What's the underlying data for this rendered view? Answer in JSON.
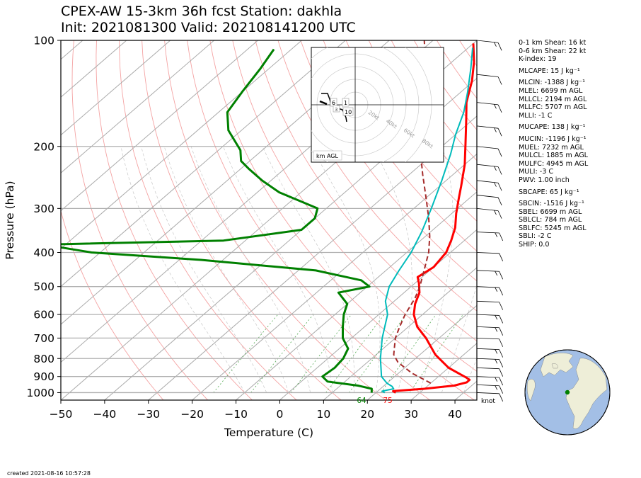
{
  "header": {
    "line1": "CPEX-AW 15-3km  36h fcst  Station: dakhla",
    "line2": "Init: 2021081300  Valid: 202108141200 UTC"
  },
  "chart_data": {
    "type": "line",
    "subtype": "skew-t log-p",
    "xlabel": "Temperature (C)",
    "ylabel": "Pressure (hPa)",
    "xlim": [
      -50,
      45
    ],
    "ylim_pressure": [
      1050,
      100
    ],
    "x_ticks": [
      "−50",
      "−40",
      "−30",
      "−20",
      "−10",
      "0",
      "10",
      "20",
      "30",
      "40"
    ],
    "y_ticks": [
      "100",
      "200",
      "300",
      "400",
      "500",
      "600",
      "700",
      "800",
      "900",
      "1000"
    ],
    "grid": true,
    "series": [
      {
        "role": "temperature",
        "color": "#ff0000",
        "points": [
          [
            24.5,
            1000
          ],
          [
            23.5,
            990
          ],
          [
            30,
            975
          ],
          [
            36,
            955
          ],
          [
            38,
            935
          ],
          [
            38,
            920
          ],
          [
            36.5,
            905
          ],
          [
            30,
            850
          ],
          [
            23.5,
            780
          ],
          [
            17,
            700
          ],
          [
            12,
            650
          ],
          [
            8,
            600
          ],
          [
            5.5,
            560
          ],
          [
            3.5,
            520
          ],
          [
            1,
            490
          ],
          [
            -1,
            470
          ],
          [
            0,
            440
          ],
          [
            -1,
            400
          ],
          [
            -3,
            370
          ],
          [
            -5.5,
            340
          ],
          [
            -9,
            310
          ],
          [
            -12.5,
            280
          ],
          [
            -15,
            260
          ],
          [
            -20,
            225
          ],
          [
            -25,
            198
          ],
          [
            -31,
            170
          ],
          [
            -36,
            150
          ],
          [
            -40.5,
            130
          ],
          [
            -45,
            115
          ],
          [
            -50,
            102
          ]
        ]
      },
      {
        "role": "dewpoint",
        "color": "#00bbbb",
        "points": [
          [
            22,
            1000
          ],
          [
            21,
            990
          ],
          [
            23,
            975
          ],
          [
            22,
            960
          ],
          [
            20,
            940
          ],
          [
            17,
            900
          ],
          [
            12,
            800
          ],
          [
            7,
            700
          ],
          [
            2,
            600
          ],
          [
            -2,
            550
          ],
          [
            -5,
            500
          ],
          [
            -7,
            450
          ],
          [
            -9,
            400
          ],
          [
            -12,
            350
          ],
          [
            -16,
            300
          ],
          [
            -21,
            250
          ],
          [
            -26,
            210
          ],
          [
            -30,
            185
          ],
          [
            -34,
            160
          ],
          [
            -38.5,
            140
          ],
          [
            -44,
            120
          ],
          [
            -49,
            105
          ]
        ]
      },
      {
        "role": "wet-bulb",
        "color": "#008000",
        "points": [
          [
            19,
            1000
          ],
          [
            18,
            975
          ],
          [
            14,
            955
          ],
          [
            6,
            930
          ],
          [
            3.5,
            900
          ],
          [
            4,
            850
          ],
          [
            3.5,
            800
          ],
          [
            2,
            750
          ],
          [
            -2,
            700
          ],
          [
            -5,
            650
          ],
          [
            -8,
            600
          ],
          [
            -10,
            560
          ],
          [
            -15,
            520
          ],
          [
            -9.5,
            500
          ],
          [
            -13,
            480
          ],
          [
            -26,
            450
          ],
          [
            -55,
            420
          ],
          [
            -82,
            400
          ],
          [
            -95,
            380
          ],
          [
            -55,
            370
          ],
          [
            -40,
            345
          ],
          [
            -40,
            320
          ],
          [
            -42,
            300
          ],
          [
            -55,
            270
          ],
          [
            -62,
            250
          ],
          [
            -68,
            232
          ],
          [
            -72,
            220
          ],
          [
            -75,
            205
          ],
          [
            -83,
            180
          ],
          [
            -88,
            160
          ],
          [
            -90,
            140
          ],
          [
            -92,
            120
          ],
          [
            -94,
            106
          ]
        ]
      },
      {
        "role": "parcel",
        "color": "#a52a2a",
        "dashed": true,
        "points": [
          [
            30,
            940
          ],
          [
            23,
            880
          ],
          [
            17,
            820
          ],
          [
            14,
            780
          ],
          [
            10,
            700
          ],
          [
            8,
            650
          ],
          [
            6,
            600
          ],
          [
            4,
            540
          ],
          [
            2,
            500
          ],
          [
            -2,
            440
          ],
          [
            -5,
            400
          ],
          [
            -9,
            360
          ],
          [
            -14,
            320
          ],
          [
            -20,
            280
          ],
          [
            -27,
            240
          ],
          [
            -35,
            200
          ],
          [
            -44,
            160
          ],
          [
            -52,
            130
          ],
          [
            -58,
            110
          ],
          [
            -62,
            100
          ]
        ]
      }
    ],
    "surface_labels": {
      "dewpoint": "64",
      "temperature": "75"
    },
    "wind_units": "knot",
    "hodograph": {
      "speed_ring_labels": [
        "20kt",
        "40kt",
        "60kt",
        "80kt"
      ],
      "height_labels": [
        "6",
        "1",
        "3",
        "10"
      ],
      "box_label": "km AGL"
    }
  },
  "indices": [
    "0-1 km Shear: 16 kt",
    "0-6 km Shear: 22 kt",
    "K-index: 19",
    "MLCAPE: 15 J kg⁻¹",
    "MLCIN: -1388 J kg⁻¹",
    "MLEL: 6699 m AGL",
    "MLLCL: 2194 m AGL",
    "MLLFC: 5707 m AGL",
    "MLLI: -1 C",
    "MUCAPE: 138 J kg⁻¹",
    "MUCIN: -1196 J kg⁻¹",
    "MUEL: 7232 m AGL",
    "MULCL: 1885 m AGL",
    "MULFC: 4945 m AGL",
    "MULI: -3 C",
    "PWV: 1.00 inch",
    "SBCAPE: 65 J kg⁻¹",
    "SBCIN: -1516 J kg⁻¹",
    "SBEL: 6699 m AGL",
    "SBLCL: 784 m AGL",
    "SBLFC: 5245 m AGL",
    "SBLI: -2 C",
    "SHIP: 0.0"
  ],
  "footer": {
    "created": "created 2021-08-16 10:57:28"
  }
}
